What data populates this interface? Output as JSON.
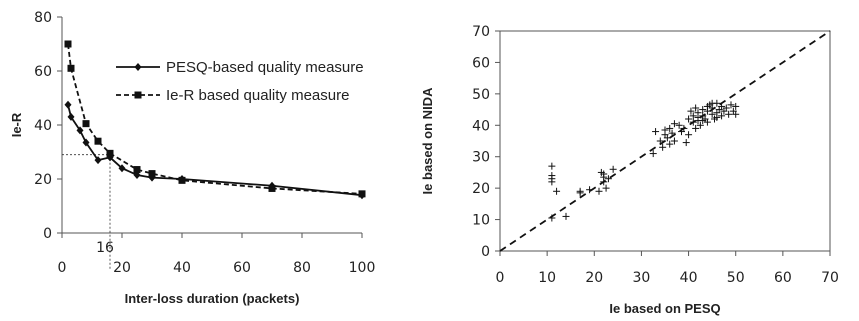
{
  "chart_data": [
    {
      "type": "line",
      "xlabel": "Inter-loss duration (packets)",
      "ylabel": "Ie-R",
      "xlim": [
        0,
        100
      ],
      "ylim": [
        0,
        80
      ],
      "xticks": [
        "0",
        "20",
        "40",
        "60",
        "80",
        "100"
      ],
      "yticks": [
        "0",
        "20",
        "40",
        "60",
        "80"
      ],
      "grid": false,
      "legend_position": "top-right",
      "annotation": {
        "label": "16",
        "x": 16,
        "y": 29
      },
      "series": [
        {
          "name": "PESQ-based quality measure",
          "style": "solid",
          "marker": "diamond",
          "x": [
            2,
            3,
            6,
            8,
            12,
            16,
            20,
            25,
            30,
            40,
            70,
            100
          ],
          "y": [
            47.5,
            43,
            38,
            33.5,
            27,
            28,
            24,
            21.5,
            20.5,
            20,
            17.5,
            14
          ]
        },
        {
          "name": "Ie-R based quality measure",
          "style": "dashed",
          "marker": "square",
          "x": [
            2,
            3,
            8,
            12,
            16,
            25,
            30,
            40,
            70,
            100
          ],
          "y": [
            70,
            61,
            40.5,
            34,
            29.5,
            23.5,
            22,
            19.5,
            16.5,
            14.5
          ]
        }
      ]
    },
    {
      "type": "scatter",
      "xlabel": "Ie based on PESQ",
      "ylabel": "Ie based on NIDA",
      "xlim": [
        0,
        70
      ],
      "ylim": [
        0,
        70
      ],
      "xticks": [
        "0",
        "10",
        "20",
        "30",
        "40",
        "50",
        "60",
        "70"
      ],
      "yticks": [
        "0",
        "10",
        "20",
        "30",
        "40",
        "50",
        "60",
        "70"
      ],
      "grid": false,
      "legend": "none",
      "reference_line": {
        "style": "dashed",
        "x": [
          0,
          70
        ],
        "y": [
          0,
          70
        ]
      },
      "marker": "plus",
      "points": [
        [
          11,
          27
        ],
        [
          11,
          24
        ],
        [
          11,
          23
        ],
        [
          11,
          22
        ],
        [
          11,
          10.5
        ],
        [
          12,
          19
        ],
        [
          14,
          11
        ],
        [
          17,
          19
        ],
        [
          17,
          18.5
        ],
        [
          19,
          19.5
        ],
        [
          21,
          19
        ],
        [
          21.5,
          25
        ],
        [
          22,
          23.5
        ],
        [
          22,
          24.5
        ],
        [
          22,
          22
        ],
        [
          22.5,
          20
        ],
        [
          23,
          23
        ],
        [
          24,
          26
        ],
        [
          32.5,
          31
        ],
        [
          33,
          38
        ],
        [
          34,
          35
        ],
        [
          34.5,
          33
        ],
        [
          35,
          37
        ],
        [
          35,
          38.5
        ],
        [
          35.5,
          36
        ],
        [
          36,
          34
        ],
        [
          36,
          39
        ],
        [
          36.5,
          37.5
        ],
        [
          37,
          40.5
        ],
        [
          37,
          35
        ],
        [
          38,
          40
        ],
        [
          38.5,
          38
        ],
        [
          39,
          39
        ],
        [
          39.5,
          34.5
        ],
        [
          40,
          42
        ],
        [
          40,
          37
        ],
        [
          40.5,
          44.5
        ],
        [
          41,
          41
        ],
        [
          41,
          43
        ],
        [
          41.5,
          45.5
        ],
        [
          41.5,
          39
        ],
        [
          42,
          41.5
        ],
        [
          42,
          44
        ],
        [
          42.5,
          40
        ],
        [
          43,
          43
        ],
        [
          43,
          45
        ],
        [
          43.5,
          42
        ],
        [
          44,
          44.5
        ],
        [
          44,
          41
        ],
        [
          44.5,
          46.5
        ],
        [
          45,
          43.5
        ],
        [
          45,
          45.5
        ],
        [
          45.5,
          42
        ],
        [
          46,
          44
        ],
        [
          46,
          47
        ],
        [
          46.5,
          45
        ],
        [
          47,
          43
        ],
        [
          47,
          46
        ],
        [
          47.5,
          44.5
        ],
        [
          48,
          45.5
        ],
        [
          48.5,
          43.5
        ],
        [
          49,
          46.5
        ],
        [
          49.5,
          44.5
        ],
        [
          50,
          46
        ],
        [
          50,
          43.5
        ],
        [
          44,
          46
        ],
        [
          45,
          47
        ],
        [
          46,
          42.5
        ],
        [
          43,
          41.5
        ],
        [
          42,
          42.5
        ]
      ]
    }
  ]
}
